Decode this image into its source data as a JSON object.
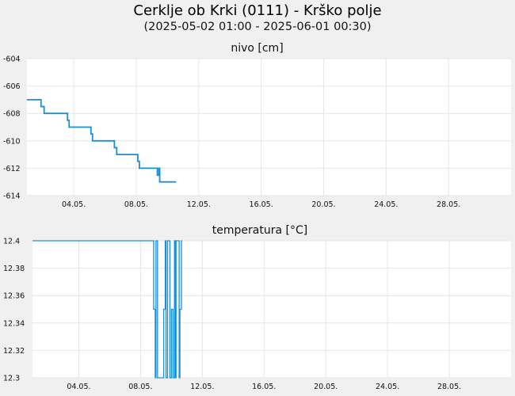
{
  "header": {
    "title": "Cerklje ob Krki (0111) - Krško polje",
    "subtitle": "(2025-05-02 01:00 - 2025-06-01 00:30)"
  },
  "colors": {
    "line": "#1a8fd6",
    "grid": "#e6e6e6",
    "plot_bg": "#ffffff",
    "page_bg": "#f0f0f0"
  },
  "chart_data": [
    {
      "type": "line",
      "title": "nivo [cm]",
      "xlabel": "",
      "ylabel": "",
      "x_range": [
        "2025-05-01",
        "2025-06-01"
      ],
      "ylim": [
        -614,
        -604
      ],
      "y_ticks": [
        "-604",
        "-606",
        "-608",
        "-610",
        "-612",
        "-614"
      ],
      "x_ticks": [
        "04.05.",
        "08.05.",
        "12.05.",
        "16.05.",
        "20.05.",
        "24.05.",
        "28.05."
      ],
      "grid": true,
      "series": [
        {
          "x": [
            1.0,
            1.9,
            1.9,
            2.1,
            2.1,
            3.6,
            3.6,
            3.7,
            3.7,
            5.1,
            5.1,
            5.2,
            5.2,
            6.6,
            6.6,
            6.75,
            6.75,
            8.1,
            8.1,
            8.2,
            8.2,
            9.35,
            9.35,
            9.45,
            9.45,
            9.5,
            9.5,
            10.55
          ],
          "y": [
            -607,
            -607,
            -607.5,
            -607.5,
            -608,
            -608,
            -608.5,
            -608.5,
            -609,
            -609,
            -609.5,
            -609.5,
            -610,
            -610,
            -610.5,
            -610.5,
            -611,
            -611,
            -611.5,
            -611.5,
            -612,
            -612,
            -612.5,
            -612.5,
            -612,
            -612,
            -613,
            -613
          ]
        }
      ]
    },
    {
      "type": "line",
      "title": "temperatura [°C]",
      "xlabel": "",
      "ylabel": "",
      "x_range": [
        "2025-05-01",
        "2025-06-01"
      ],
      "ylim": [
        12.3,
        12.4
      ],
      "y_ticks": [
        "12.4",
        "12.38",
        "12.36",
        "12.34",
        "12.32",
        "12.3"
      ],
      "x_ticks": [
        "04.05.",
        "08.05.",
        "12.05.",
        "16.05.",
        "20.05.",
        "24.05.",
        "28.05."
      ],
      "grid": true,
      "series": [
        {
          "x": [
            1.0,
            8.85,
            8.85,
            8.95,
            8.95,
            9.0,
            9.0,
            9.1,
            9.1,
            9.5,
            9.5,
            9.6,
            9.6,
            9.65,
            9.65,
            9.75,
            9.75,
            9.9,
            9.9,
            10.0,
            10.0,
            10.1,
            10.1,
            10.2,
            10.2,
            10.25,
            10.25,
            10.3,
            10.3,
            10.5,
            10.5,
            10.55,
            10.55,
            10.65,
            10.65,
            10.7
          ],
          "y": [
            12.4,
            12.4,
            12.35,
            12.35,
            12.3,
            12.3,
            12.4,
            12.4,
            12.3,
            12.3,
            12.35,
            12.35,
            12.4,
            12.4,
            12.3,
            12.3,
            12.4,
            12.4,
            12.3,
            12.3,
            12.35,
            12.35,
            12.3,
            12.3,
            12.4,
            12.4,
            12.3,
            12.3,
            12.4,
            12.4,
            12.3,
            12.3,
            12.35,
            12.35,
            12.4,
            12.4
          ]
        }
      ]
    }
  ]
}
